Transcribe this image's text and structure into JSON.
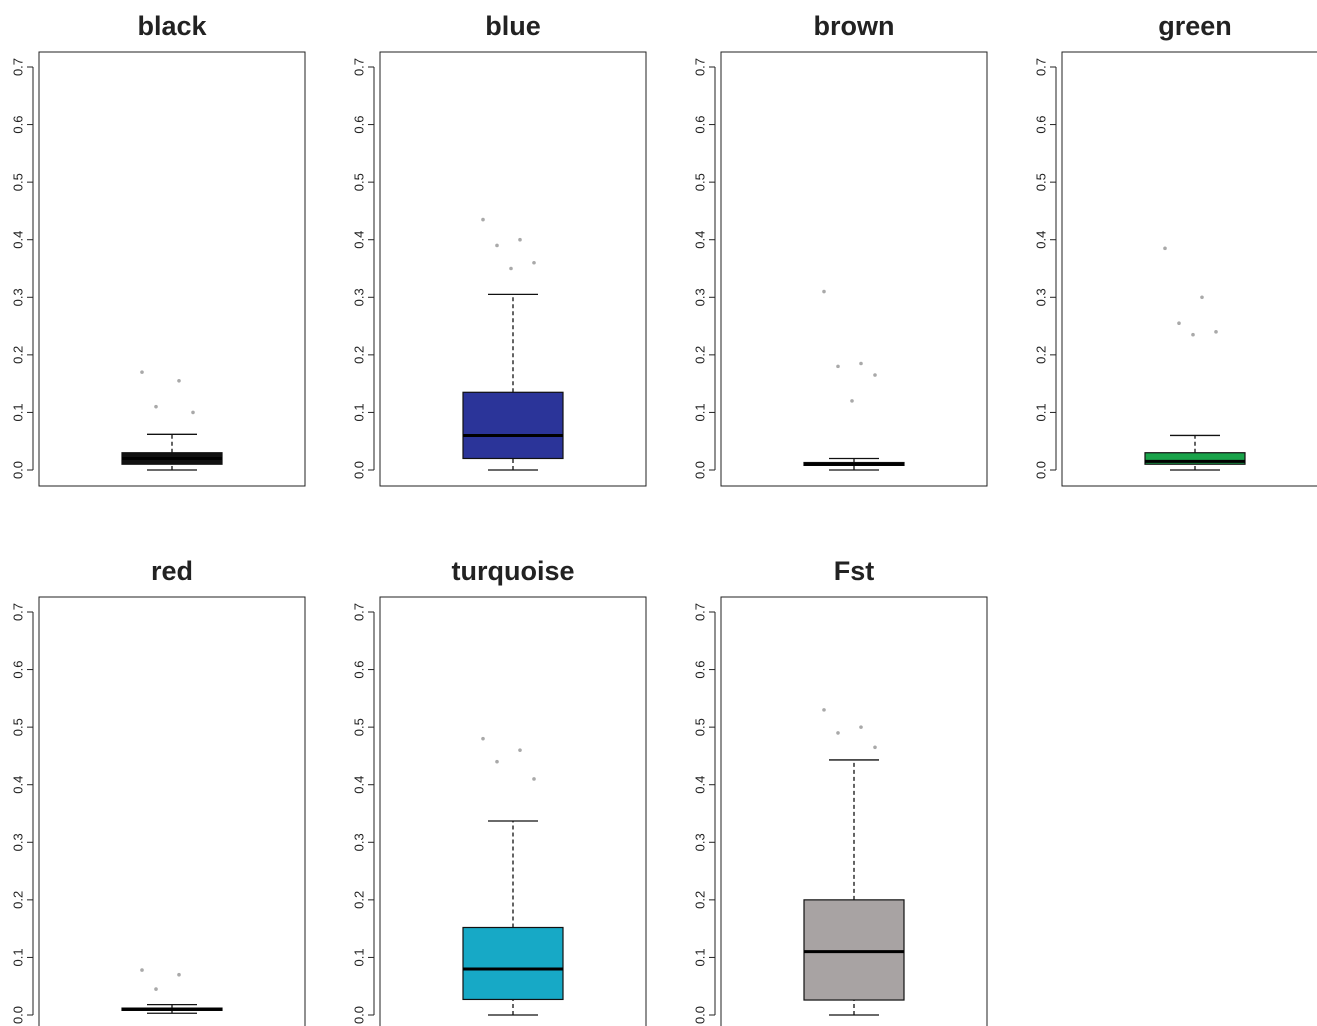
{
  "chart_data": [
    {
      "type": "box",
      "title": "black",
      "color": "#111111",
      "ylim": [
        0,
        0.7
      ],
      "yticks": [
        {
          "value": 0,
          "label": "0.0"
        },
        0.1,
        0.2,
        0.3,
        0.4,
        0.5,
        0.6,
        0.7
      ],
      "whisker_low": 0,
      "q1": 0.01,
      "median": 0.02,
      "q3": 0.03,
      "whisker_high": 0.062,
      "outliers": [
        0.17,
        0.155,
        0.11,
        0.1
      ]
    },
    {
      "type": "box",
      "title": "blue",
      "color": "#2b3499",
      "ylim": [
        0,
        0.7
      ],
      "yticks": [
        {
          "value": 0,
          "label": "0.0"
        },
        0.1,
        0.2,
        0.3,
        0.4,
        0.5,
        0.6,
        0.7
      ],
      "whisker_low": 0,
      "q1": 0.02,
      "median": 0.06,
      "q3": 0.135,
      "whisker_high": 0.305,
      "outliers": [
        0.435,
        0.4,
        0.39,
        0.36,
        0.35
      ]
    },
    {
      "type": "box",
      "title": "brown",
      "color": "#3a2418",
      "ylim": [
        0,
        0.7
      ],
      "yticks": [
        {
          "value": 0,
          "label": "0.0"
        },
        0.1,
        0.2,
        0.3,
        0.4,
        0.5,
        0.6,
        0.7
      ],
      "whisker_low": 0,
      "q1": 0.008,
      "median": 0.01,
      "q3": 0.013,
      "whisker_high": 0.02,
      "outliers": [
        0.31,
        0.185,
        0.18,
        0.165,
        0.12
      ]
    },
    {
      "type": "box",
      "title": "green",
      "color": "#1aa34a",
      "ylim": [
        0,
        0.7
      ],
      "yticks": [
        {
          "value": 0,
          "label": "0.0"
        },
        0.1,
        0.2,
        0.3,
        0.4,
        0.5,
        0.6,
        0.7
      ],
      "whisker_low": 0,
      "q1": 0.01,
      "median": 0.015,
      "q3": 0.03,
      "whisker_high": 0.06,
      "outliers": [
        0.385,
        0.3,
        0.255,
        0.24,
        0.235
      ]
    },
    {
      "type": "box",
      "title": "red",
      "color": "#2a1010",
      "ylim": [
        0,
        0.7
      ],
      "yticks": [
        {
          "value": 0,
          "label": "0.0"
        },
        0.1,
        0.2,
        0.3,
        0.4,
        0.5,
        0.6,
        0.7
      ],
      "whisker_low": 0.003,
      "q1": 0.008,
      "median": 0.01,
      "q3": 0.012,
      "whisker_high": 0.018,
      "outliers": [
        0.078,
        0.07,
        0.045
      ]
    },
    {
      "type": "box",
      "title": "turquoise",
      "color": "#17a9c6",
      "ylim": [
        0,
        0.7
      ],
      "yticks": [
        {
          "value": 0,
          "label": "0.0"
        },
        0.1,
        0.2,
        0.3,
        0.4,
        0.5,
        0.6,
        0.7
      ],
      "whisker_low": 0,
      "q1": 0.027,
      "median": 0.08,
      "q3": 0.152,
      "whisker_high": 0.337,
      "outliers": [
        0.48,
        0.46,
        0.44,
        0.41
      ]
    },
    {
      "type": "box",
      "title": "Fst",
      "color": "#a8a3a3",
      "ylim": [
        0,
        0.7
      ],
      "yticks": [
        {
          "value": 0,
          "label": "0.0"
        },
        0.1,
        0.2,
        0.3,
        0.4,
        0.5,
        0.6,
        0.7
      ],
      "whisker_low": 0,
      "q1": 0.026,
      "median": 0.11,
      "q3": 0.2,
      "whisker_high": 0.443,
      "outliers": [
        0.53,
        0.5,
        0.49,
        0.465
      ]
    }
  ]
}
